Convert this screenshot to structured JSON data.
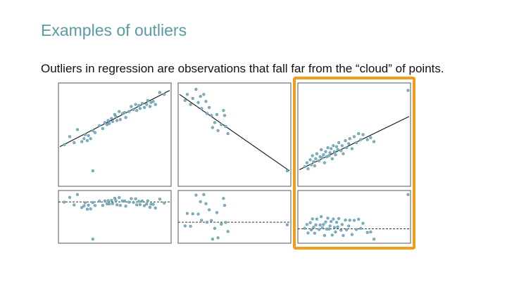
{
  "slide": {
    "title": "Examples of outliers",
    "subtitle": "Outliers in regression are observations that fall far from the “cloud” of points."
  },
  "colors": {
    "title": "#5b9aa5",
    "point_fill": "#7fb0c3",
    "point_stroke": "#5a8fa3",
    "highlight": "#f39c1a"
  },
  "chart_data": [
    {
      "type": "scatter",
      "panel": "left",
      "xlim": [
        0,
        10
      ],
      "ylim": [
        0,
        10
      ],
      "x": [
        0.4,
        0.9,
        1.3,
        1.6,
        2.0,
        2.2,
        2.3,
        2.5,
        2.6,
        2.8,
        3.0,
        3.2,
        3.6,
        3.9,
        4.1,
        4.3,
        4.4,
        4.5,
        4.7,
        4.8,
        5.0,
        5.1,
        5.2,
        5.4,
        5.5,
        5.7,
        5.9,
        6.0,
        6.3,
        6.5,
        6.7,
        6.9,
        7.0,
        7.2,
        7.3,
        7.5,
        7.7,
        7.9,
        8.0,
        8.2,
        8.3,
        8.5,
        8.7,
        9.1,
        9.5,
        3.0
      ],
      "y": [
        4.0,
        4.8,
        4.2,
        5.5,
        4.3,
        4.6,
        5.0,
        4.4,
        4.9,
        4.6,
        5.4,
        5.2,
        5.9,
        5.6,
        6.2,
        6.0,
        6.4,
        6.1,
        6.6,
        6.3,
        7.0,
        6.8,
        6.4,
        7.3,
        6.5,
        7.1,
        7.2,
        6.7,
        7.3,
        7.8,
        7.5,
        8.0,
        7.4,
        7.9,
        7.6,
        8.1,
        7.7,
        8.0,
        8.4,
        7.8,
        8.2,
        8.3,
        8.0,
        9.2,
        9.0,
        1.4
      ],
      "fit": {
        "x": [
          0,
          10
        ],
        "y": [
          3.8,
          9.4
        ]
      }
    },
    {
      "type": "scatter",
      "panel": "middle",
      "xlim": [
        0,
        10
      ],
      "ylim": [
        0,
        10
      ],
      "x": [
        0.5,
        0.7,
        1.0,
        1.2,
        1.5,
        1.7,
        1.9,
        2.0,
        2.2,
        2.4,
        2.5,
        2.7,
        2.9,
        3.0,
        3.2,
        3.4,
        3.5,
        3.8,
        4.0,
        4.2,
        4.1,
        4.4,
        9.8
      ],
      "y": [
        8.4,
        9.0,
        8.0,
        8.6,
        9.5,
        8.2,
        8.8,
        7.6,
        9.0,
        8.3,
        7.1,
        7.7,
        6.9,
        5.7,
        6.2,
        7.0,
        5.4,
        6.0,
        7.4,
        5.8,
        6.9,
        5.1,
        1.4
      ],
      "fit": {
        "x": [
          0,
          10
        ],
        "y": [
          9.0,
          1.4
        ]
      }
    },
    {
      "type": "scatter",
      "panel": "right",
      "xlim": [
        0,
        10
      ],
      "ylim": [
        0,
        10
      ],
      "x": [
        0.5,
        0.7,
        0.8,
        1.0,
        1.1,
        1.2,
        1.3,
        1.4,
        1.5,
        1.6,
        1.8,
        1.9,
        2.0,
        2.1,
        2.2,
        2.3,
        2.4,
        2.5,
        2.6,
        2.7,
        2.8,
        2.9,
        3.0,
        3.1,
        3.2,
        3.3,
        3.4,
        3.5,
        3.6,
        3.8,
        3.9,
        4.0,
        4.2,
        4.3,
        4.5,
        4.6,
        4.8,
        5.0,
        5.2,
        5.4,
        5.6,
        5.8,
        6.2,
        6.5,
        6.8,
        9.9
      ],
      "y": [
        1.8,
        2.2,
        1.6,
        2.5,
        2.0,
        2.9,
        2.3,
        1.9,
        2.6,
        3.1,
        2.4,
        2.8,
        3.5,
        2.7,
        3.0,
        2.2,
        3.3,
        2.8,
        3.7,
        2.9,
        3.2,
        3.6,
        2.6,
        3.9,
        3.3,
        3.0,
        3.8,
        3.5,
        4.2,
        3.4,
        3.9,
        3.1,
        4.4,
        3.7,
        4.1,
        4.6,
        3.6,
        4.8,
        4.2,
        5.1,
        4.5,
        5.0,
        4.5,
        4.7,
        4.3,
        9.4
      ],
      "fit": {
        "x": [
          0,
          10
        ],
        "y": [
          1.5,
          6.8
        ]
      }
    }
  ]
}
